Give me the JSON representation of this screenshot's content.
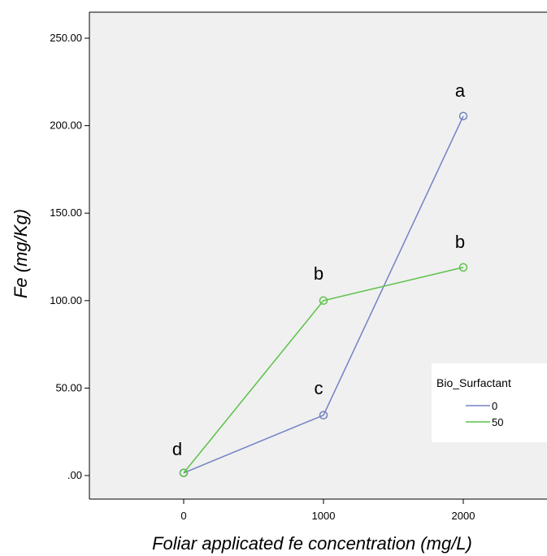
{
  "chart_data": {
    "type": "line",
    "title": "",
    "xlabel": "Foliar applicated fe concentration (mg/L)",
    "ylabel": "Fe (mg/Kg)",
    "categories": [
      "0",
      "1000",
      "2000"
    ],
    "y_ticks": [
      ".00",
      "50.00",
      "100.00",
      "150.00",
      "200.00",
      "250.00"
    ],
    "ylim": [
      0,
      250
    ],
    "grid": false,
    "legend": {
      "title": "Bio_Surfactant",
      "position": "right"
    },
    "series": [
      {
        "name": "0",
        "color": "#7382c3",
        "values": [
          1.5,
          34.5,
          205.5
        ],
        "labels": [
          "d",
          "c",
          "a"
        ]
      },
      {
        "name": "50",
        "color": "#5cc04a",
        "values": [
          1.5,
          100,
          119
        ],
        "labels": [
          "",
          "b",
          "b"
        ]
      }
    ]
  },
  "colors": {
    "plot_background": "#f0f0f0",
    "axis": "#000000"
  }
}
